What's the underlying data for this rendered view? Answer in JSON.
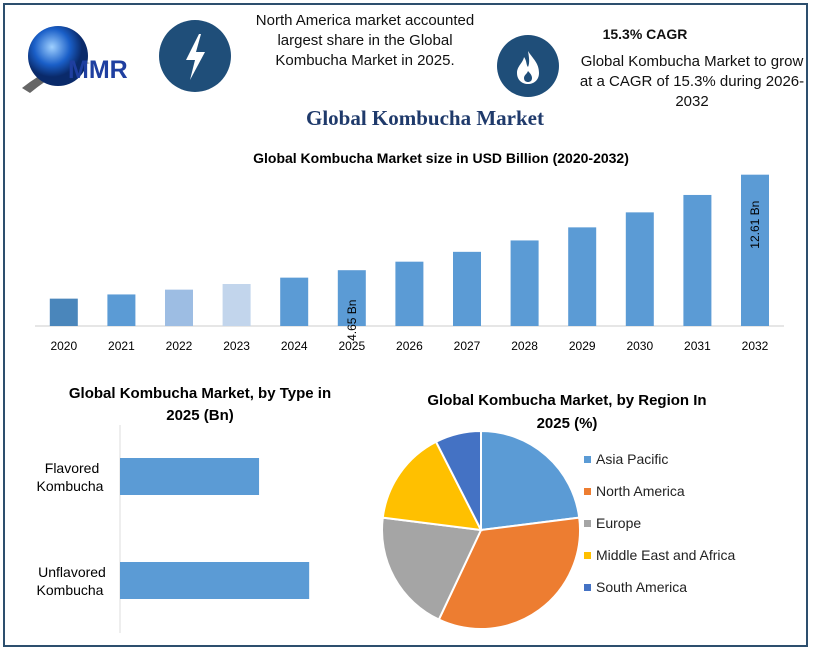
{
  "header": {
    "logo_text": "MMR",
    "left_icon": "lightning-bolt-icon",
    "left_text": "North America market accounted largest share in the Global Kombucha Market in 2025.",
    "right_icon": "flame-icon",
    "cagr_label": "15.3% CAGR",
    "right_text": "Global Kombucha Market to grow at a CAGR of 15.3% during 2026-2032",
    "main_title": "Global Kombucha Market"
  },
  "colors": {
    "bar": "#5b9bd5",
    "bar_2020": "#4a86bb",
    "bar_2022": "#9dbde3",
    "bar_2023": "#c2d5ec",
    "title": "#1f3a6b",
    "icon_bg": "#1f4e79"
  },
  "chart_data": [
    {
      "type": "bar",
      "title": "Global Kombucha Market size in USD Billion (2020-2032)",
      "categories": [
        "2020",
        "2021",
        "2022",
        "2023",
        "2024",
        "2025",
        "2026",
        "2027",
        "2028",
        "2029",
        "2030",
        "2031",
        "2032"
      ],
      "values": [
        2.28,
        2.63,
        3.03,
        3.5,
        4.03,
        4.65,
        5.36,
        6.18,
        7.13,
        8.22,
        9.47,
        10.92,
        12.61
      ],
      "data_labels": {
        "2025": "4.65 Bn",
        "2032": "12.61 Bn"
      },
      "ylim": [
        0,
        13
      ],
      "grid": false
    },
    {
      "type": "bar",
      "orientation": "horizontal",
      "title": "Global Kombucha Market, by Type in 2025 (Bn)",
      "categories": [
        "Flavored Kombucha",
        "Unflavored Kombucha"
      ],
      "values": [
        1.97,
        2.68
      ],
      "xlim": [
        0,
        3.4
      ]
    },
    {
      "type": "pie",
      "title": "Global Kombucha Market, by Region In 2025 (%)",
      "legend": "right",
      "slices": [
        {
          "name": "Asia Pacific",
          "value": 23,
          "color": "#5b9bd5"
        },
        {
          "name": "North America",
          "value": 34,
          "color": "#ed7d31"
        },
        {
          "name": "Europe",
          "value": 20,
          "color": "#a5a5a5"
        },
        {
          "name": "Middle East and Africa",
          "value": 15.5,
          "color": "#ffc000"
        },
        {
          "name": "South America",
          "value": 7.5,
          "color": "#4472c4"
        }
      ]
    }
  ]
}
